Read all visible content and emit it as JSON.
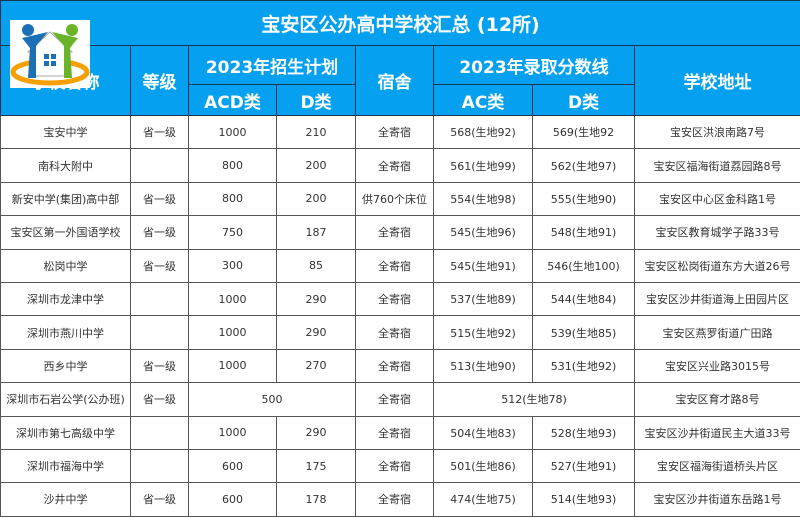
{
  "title": "宝安区公办高中学校汇总 (12所)",
  "headers": {
    "name": "学校名称",
    "level": "等级",
    "plan": "2023年招生计划",
    "acd": "ACD类",
    "d": "D类",
    "dorm": "宿舍",
    "score": "2023年录取分数线",
    "ac": "AC类",
    "d2": "D类",
    "addr": "学校地址"
  },
  "rows": [
    {
      "name": "宝安中学",
      "level": "省一级",
      "acd": "1000",
      "d": "210",
      "dorm": "全寄宿",
      "ac": "568(生地92)",
      "ds": "569(生地92",
      "addr": "宝安区洪浪南路7号"
    },
    {
      "name": "南科大附中",
      "level": "",
      "acd": "800",
      "d": "200",
      "dorm": "全寄宿",
      "ac": "561(生地99)",
      "ds": "562(生地97)",
      "addr": "宝安区福海街道荔园路8号"
    },
    {
      "name": "新安中学(集团)高中部",
      "level": "省一级",
      "acd": "800",
      "d": "200",
      "dorm": "供760个床位",
      "ac": "554(生地98)",
      "ds": "555(生地90)",
      "addr": "宝安区中心区金科路1号"
    },
    {
      "name": "宝安区第一外国语学校",
      "level": "省一级",
      "acd": "750",
      "d": "187",
      "dorm": "全寄宿",
      "ac": "545(生地96)",
      "ds": "548(生地91)",
      "addr": "宝安区教育城学子路33号"
    },
    {
      "name": "松岗中学",
      "level": "省一级",
      "acd": "300",
      "d": "85",
      "dorm": "全寄宿",
      "ac": "545(生地91)",
      "ds": "546(生地100)",
      "addr": "宝安区松岗街道东方大道26号"
    },
    {
      "name": "深圳市龙津中学",
      "level": "",
      "acd": "1000",
      "d": "290",
      "dorm": "全寄宿",
      "ac": "537(生地89)",
      "ds": "544(生地84)",
      "addr": "宝安区沙井街道海上田园片区"
    },
    {
      "name": "深圳市燕川中学",
      "level": "",
      "acd": "1000",
      "d": "290",
      "dorm": "全寄宿",
      "ac": "515(生地92)",
      "ds": "539(生地85)",
      "addr": "宝安区燕罗街道广田路"
    },
    {
      "name": "西乡中学",
      "level": "省一级",
      "acd": "1000",
      "d": "270",
      "dorm": "全寄宿",
      "ac": "513(生地90)",
      "ds": "531(生地92)",
      "addr": "宝安区兴业路3015号"
    },
    {
      "name": "深圳市石岩公学(公办班)",
      "level": "省一级",
      "merged_plan": "500",
      "dorm": "全寄宿",
      "merged_score": "512(生地78)",
      "addr": "宝安区育才路8号"
    },
    {
      "name": "深圳市第七高级中学",
      "level": "",
      "acd": "1000",
      "d": "290",
      "dorm": "全寄宿",
      "ac": "504(生地83)",
      "ds": "528(生地93)",
      "addr": "宝安区沙井街道民主大道33号"
    },
    {
      "name": "深圳市福海中学",
      "level": "",
      "acd": "600",
      "d": "175",
      "dorm": "全寄宿",
      "ac": "501(生地86)",
      "ds": "527(生地91)",
      "addr": "宝安区福海街道桥头片区"
    },
    {
      "name": "沙井中学",
      "level": "省一级",
      "acd": "600",
      "d": "178",
      "dorm": "全寄宿",
      "ac": "474(生地75)",
      "ds": "514(生地93)",
      "addr": "宝安区沙井街道东岳路1号"
    }
  ],
  "colors": {
    "header_bg": "#05a0f0"
  },
  "logo": {
    "icon": "house-people-logo"
  }
}
